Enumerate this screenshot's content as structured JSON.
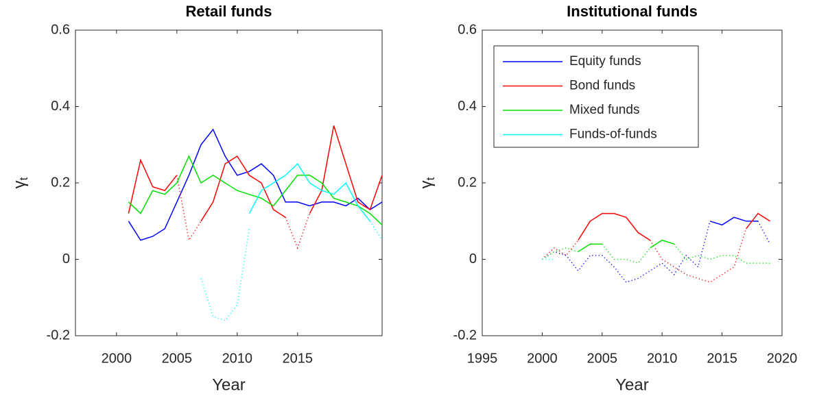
{
  "chart_data": [
    {
      "type": "line",
      "title": "Retail funds",
      "x_label": "Year",
      "y_label": "γ",
      "y_label_subscript": "t",
      "x": [
        2001,
        2002,
        2003,
        2004,
        2005,
        2006,
        2007,
        2008,
        2009,
        2010,
        2011,
        2012,
        2013,
        2014,
        2015,
        2016,
        2017,
        2018,
        2019,
        2020,
        2021,
        2022
      ],
      "xlim": [
        1996.6,
        2022
      ],
      "xticks": [
        2000,
        2005,
        2010,
        2015
      ],
      "ylim": [
        -0.2,
        0.6
      ],
      "yticks": [
        -0.2,
        0,
        0.2,
        0.4,
        0.6
      ],
      "series": [
        {
          "color": "#0000ff",
          "values": [
            0.1,
            0.05,
            0.06,
            0.08,
            0.15,
            0.22,
            0.3,
            0.34,
            0.27,
            0.22,
            0.23,
            0.25,
            0.22,
            0.15,
            0.15,
            0.14,
            0.15,
            0.15,
            0.14,
            0.16,
            0.13,
            0.15
          ],
          "dotted_values": [
            null,
            null,
            null,
            null,
            null,
            null,
            null,
            null,
            null,
            null,
            null,
            null,
            null,
            null,
            null,
            null,
            null,
            null,
            null,
            null,
            null,
            null
          ]
        },
        {
          "color": "#ff0000",
          "values": [
            0.12,
            0.26,
            0.19,
            0.18,
            0.22,
            null,
            0.1,
            0.15,
            0.25,
            0.27,
            0.22,
            0.2,
            0.13,
            0.11,
            null,
            0.12,
            0.18,
            0.35,
            0.25,
            0.15,
            0.13,
            0.22
          ],
          "dotted_values": [
            null,
            null,
            null,
            null,
            0.22,
            0.05,
            0.1,
            null,
            null,
            null,
            null,
            null,
            null,
            0.11,
            0.03,
            0.12,
            null,
            null,
            null,
            null,
            null,
            null
          ]
        },
        {
          "color": "#00e000",
          "values": [
            0.15,
            0.12,
            0.18,
            0.17,
            0.2,
            0.27,
            0.2,
            0.22,
            0.2,
            0.18,
            0.17,
            0.16,
            0.14,
            0.18,
            0.22,
            0.22,
            0.2,
            0.16,
            0.15,
            0.14,
            0.12,
            0.09
          ],
          "dotted_values": [
            null,
            null,
            null,
            null,
            null,
            null,
            null,
            null,
            null,
            null,
            null,
            null,
            null,
            null,
            null,
            null,
            null,
            null,
            null,
            null,
            null,
            null
          ]
        },
        {
          "color": "#00ffff",
          "values": [
            null,
            null,
            null,
            null,
            null,
            null,
            null,
            null,
            null,
            null,
            0.12,
            0.18,
            0.2,
            0.22,
            0.25,
            0.2,
            0.18,
            0.17,
            0.2,
            0.14,
            0.1,
            null
          ],
          "dotted_values": [
            null,
            null,
            null,
            null,
            null,
            null,
            -0.05,
            -0.15,
            -0.16,
            -0.12,
            0.08,
            null,
            null,
            null,
            null,
            null,
            null,
            null,
            null,
            null,
            0.1,
            0.05
          ]
        }
      ]
    },
    {
      "type": "line",
      "title": "Institutional funds",
      "x_label": "Year",
      "y_label": "γ",
      "y_label_subscript": "t",
      "x": [
        2000,
        2001,
        2002,
        2003,
        2004,
        2005,
        2006,
        2007,
        2008,
        2009,
        2010,
        2011,
        2012,
        2013,
        2014,
        2015,
        2016,
        2017,
        2018,
        2019
      ],
      "xlim": [
        1995,
        2020
      ],
      "xticks": [
        1995,
        2000,
        2005,
        2010,
        2015,
        2020
      ],
      "ylim": [
        -0.2,
        0.6
      ],
      "yticks": [
        -0.2,
        0,
        0.2,
        0.4,
        0.6
      ],
      "legend": "upper left",
      "series": [
        {
          "name": "Equity funds",
          "color": "#0000ff",
          "values": [
            null,
            null,
            null,
            null,
            null,
            null,
            null,
            null,
            null,
            null,
            null,
            null,
            null,
            null,
            0.1,
            0.09,
            0.11,
            0.1,
            0.1,
            null
          ],
          "dotted_values": [
            0,
            0.02,
            0.01,
            -0.03,
            0.01,
            0.01,
            -0.02,
            -0.06,
            -0.05,
            -0.03,
            -0.01,
            -0.04,
            0.01,
            -0.02,
            0.1,
            null,
            null,
            null,
            0.1,
            0.04
          ]
        },
        {
          "name": "Bond funds",
          "color": "#ff0000",
          "values": [
            null,
            null,
            null,
            0.05,
            0.1,
            0.12,
            0.12,
            0.11,
            0.07,
            0.05,
            null,
            null,
            null,
            null,
            null,
            null,
            null,
            0.08,
            0.12,
            0.1
          ],
          "dotted_values": [
            0,
            0.03,
            0.01,
            0.05,
            null,
            null,
            null,
            null,
            null,
            0.05,
            0,
            -0.02,
            -0.04,
            -0.05,
            -0.06,
            -0.04,
            -0.02,
            0.08,
            null,
            null
          ]
        },
        {
          "name": "Mixed funds",
          "color": "#00e000",
          "values": [
            null,
            null,
            null,
            0.02,
            0.04,
            0.04,
            null,
            null,
            null,
            0.03,
            0.05,
            0.04,
            null,
            null,
            null,
            null,
            null,
            null,
            null,
            null
          ],
          "dotted_values": [
            0,
            0.02,
            0.03,
            0.02,
            null,
            0.04,
            0,
            0,
            -0.01,
            0.03,
            null,
            0.04,
            0,
            0.01,
            0,
            0.01,
            0.01,
            -0.01,
            -0.01,
            -0.01
          ]
        },
        {
          "name": "Funds-of-funds",
          "color": "#00ffff",
          "values": [
            null,
            null,
            null,
            null,
            null,
            null,
            null,
            null,
            null,
            null,
            null,
            null,
            null,
            null,
            null,
            null,
            null,
            null,
            null,
            null
          ],
          "dotted_values": [
            0,
            0,
            null,
            null,
            null,
            null,
            null,
            null,
            null,
            null,
            null,
            null,
            null,
            null,
            null,
            null,
            null,
            null,
            null,
            null
          ]
        }
      ]
    }
  ]
}
